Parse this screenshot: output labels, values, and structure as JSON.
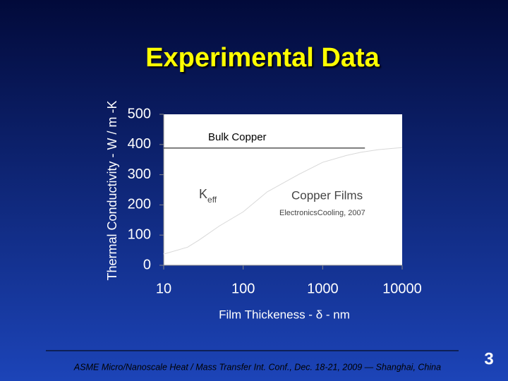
{
  "chart_data": {
    "type": "line",
    "title": "Experimental Data",
    "x_label": "Film Thickeness - δ - nm",
    "y_label": "Thermal Conductivity - W / m -K",
    "x": [
      10,
      20,
      28,
      50,
      100,
      200,
      500,
      1000,
      2000,
      3000,
      5000,
      10000
    ],
    "values": [
      37,
      60,
      84,
      130,
      177,
      243,
      301,
      341,
      364,
      374,
      383,
      390
    ],
    "color": "#ffffff",
    "xscale": "log",
    "xlim": [
      10,
      10000
    ],
    "xticks": [
      10,
      100,
      1000,
      10000
    ],
    "ylim": [
      0,
      500
    ],
    "yticks": [
      0,
      100,
      200,
      300,
      400,
      500
    ],
    "reference_line": {
      "label": "Bulk Copper",
      "value": 388,
      "x_end": 3400
    },
    "annotations": {
      "k_eff": {
        "text": "K",
        "subscript": "eff"
      },
      "films": "Copper Films",
      "source": "ElectronicsCooling, 2007"
    }
  },
  "footer": {
    "text": "ASME Micro/Nanoscale Heat / Mass Transfer Int. Conf.,  Dec. 18-21, 2009 — Shanghai, China",
    "page": "3"
  }
}
